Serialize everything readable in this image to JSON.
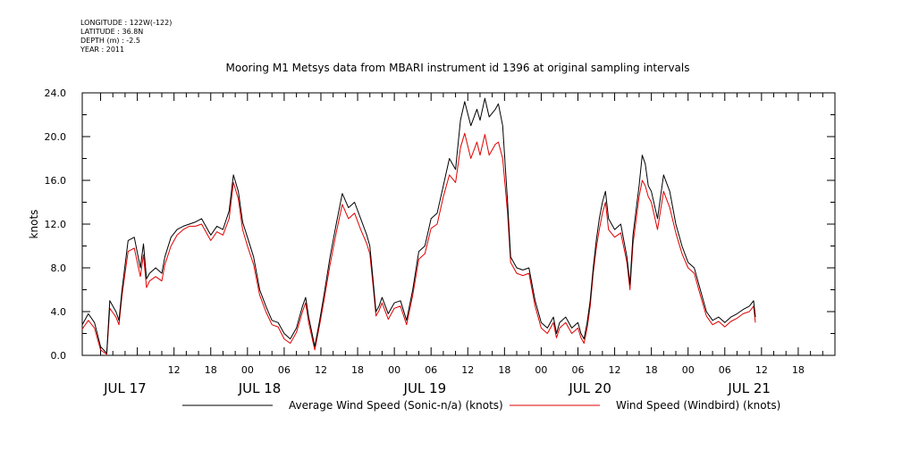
{
  "header": {
    "meta_lines": [
      "LONGITUDE : 122W(-122)",
      "LATITUDE : 36.8N",
      "DEPTH (m) : -2.5",
      "YEAR : 2011"
    ]
  },
  "colors": {
    "series_black": "#000000",
    "series_red": "#e00000",
    "axis": "#000000"
  },
  "chart_data": {
    "type": "line",
    "title": "Mooring M1 Metsys data from MBARI instrument id 1396 at original sampling intervals",
    "ylabel": "knots",
    "xlabel": "",
    "ylim": [
      0,
      24
    ],
    "yticks": [
      "0.0",
      "4.0",
      "8.0",
      "12.0",
      "16.0",
      "20.0",
      "24.0"
    ],
    "xlim_hours": [
      -3,
      120
    ],
    "x_unit": "hours from 2011-07-17 00:00",
    "hour_ticks": [
      {
        "h": 12,
        "label": "12"
      },
      {
        "h": 18,
        "label": "18"
      },
      {
        "h": 24,
        "label": "00"
      },
      {
        "h": 30,
        "label": "06"
      },
      {
        "h": 36,
        "label": "12"
      },
      {
        "h": 42,
        "label": "18"
      },
      {
        "h": 48,
        "label": "00"
      },
      {
        "h": 54,
        "label": "06"
      },
      {
        "h": 60,
        "label": "12"
      },
      {
        "h": 66,
        "label": "18"
      },
      {
        "h": 72,
        "label": "00"
      },
      {
        "h": 78,
        "label": "06"
      },
      {
        "h": 84,
        "label": "12"
      },
      {
        "h": 90,
        "label": "18"
      },
      {
        "h": 96,
        "label": "00"
      },
      {
        "h": 102,
        "label": "06"
      },
      {
        "h": 108,
        "label": "12"
      },
      {
        "h": 114,
        "label": "18"
      }
    ],
    "day_labels": [
      {
        "h": 4,
        "label": "JUL 17"
      },
      {
        "h": 26,
        "label": "JUL 18"
      },
      {
        "h": 53,
        "label": "JUL 19"
      },
      {
        "h": 80,
        "label": "JUL 20"
      },
      {
        "h": 106,
        "label": "JUL 21"
      }
    ],
    "legend_position": "bottom",
    "series": [
      {
        "name": "Average Wind Speed (Sonic-n/a) (knots)",
        "color": "#000000",
        "points": [
          [
            -3,
            2.8
          ],
          [
            -2,
            3.8
          ],
          [
            -1,
            3.0
          ],
          [
            0,
            0.8
          ],
          [
            1,
            0.2
          ],
          [
            1.5,
            5.0
          ],
          [
            2.5,
            4.0
          ],
          [
            3,
            3.2
          ],
          [
            3.5,
            6.0
          ],
          [
            4.5,
            10.5
          ],
          [
            5.5,
            10.8
          ],
          [
            6.5,
            8.0
          ],
          [
            7,
            10.2
          ],
          [
            7.5,
            7.0
          ],
          [
            8,
            7.5
          ],
          [
            9,
            8.0
          ],
          [
            10,
            7.5
          ],
          [
            10.5,
            9.0
          ],
          [
            11.5,
            10.8
          ],
          [
            12.5,
            11.5
          ],
          [
            13.5,
            11.8
          ],
          [
            14.5,
            12.0
          ],
          [
            15.5,
            12.2
          ],
          [
            16.5,
            12.5
          ],
          [
            17.5,
            11.5
          ],
          [
            18,
            11.0
          ],
          [
            19,
            11.8
          ],
          [
            20,
            11.5
          ],
          [
            21,
            13.2
          ],
          [
            21.7,
            16.5
          ],
          [
            22.5,
            15.0
          ],
          [
            23.2,
            12.2
          ],
          [
            24,
            10.8
          ],
          [
            25,
            9.0
          ],
          [
            26,
            6.0
          ],
          [
            27,
            4.5
          ],
          [
            28,
            3.2
          ],
          [
            29,
            3.0
          ],
          [
            30,
            2.0
          ],
          [
            31,
            1.5
          ],
          [
            32,
            2.5
          ],
          [
            33,
            4.5
          ],
          [
            33.5,
            5.3
          ],
          [
            34,
            3.5
          ],
          [
            35,
            0.8
          ],
          [
            35.8,
            3.2
          ],
          [
            36.5,
            5.5
          ],
          [
            37.5,
            9.0
          ],
          [
            38.5,
            12.0
          ],
          [
            39.5,
            14.8
          ],
          [
            40.5,
            13.5
          ],
          [
            41.5,
            14.0
          ],
          [
            42.5,
            12.5
          ],
          [
            43.5,
            11.0
          ],
          [
            44,
            10.0
          ],
          [
            44.5,
            7.0
          ],
          [
            45,
            4.0
          ],
          [
            45.5,
            4.5
          ],
          [
            46,
            5.3
          ],
          [
            47,
            3.8
          ],
          [
            48,
            4.8
          ],
          [
            49,
            5.0
          ],
          [
            50,
            3.2
          ],
          [
            51,
            6.0
          ],
          [
            52,
            9.5
          ],
          [
            53,
            10.0
          ],
          [
            54,
            12.5
          ],
          [
            55,
            13.0
          ],
          [
            56,
            15.5
          ],
          [
            57,
            18.0
          ],
          [
            58,
            17.0
          ],
          [
            58.8,
            21.5
          ],
          [
            59.5,
            23.2
          ],
          [
            60.5,
            21.0
          ],
          [
            61.5,
            22.5
          ],
          [
            62,
            21.5
          ],
          [
            62.8,
            23.5
          ],
          [
            63.5,
            21.8
          ],
          [
            64.5,
            22.5
          ],
          [
            65,
            23.0
          ],
          [
            65.7,
            21.0
          ],
          [
            66.5,
            14.0
          ],
          [
            67,
            9.0
          ],
          [
            68,
            8.0
          ],
          [
            69,
            7.8
          ],
          [
            70,
            8.0
          ],
          [
            71,
            5.0
          ],
          [
            72,
            3.0
          ],
          [
            73,
            2.5
          ],
          [
            74,
            3.5
          ],
          [
            74.5,
            2.0
          ],
          [
            75,
            3.0
          ],
          [
            76,
            3.5
          ],
          [
            77,
            2.5
          ],
          [
            78,
            3.0
          ],
          [
            78.5,
            2.0
          ],
          [
            79,
            1.5
          ],
          [
            79.5,
            3.0
          ],
          [
            80,
            5.0
          ],
          [
            80.5,
            8.0
          ],
          [
            81,
            10.5
          ],
          [
            81.5,
            12.5
          ],
          [
            82,
            14.0
          ],
          [
            82.5,
            15.0
          ],
          [
            83,
            12.5
          ],
          [
            84,
            11.5
          ],
          [
            85,
            12.0
          ],
          [
            86,
            9.0
          ],
          [
            86.5,
            6.5
          ],
          [
            87,
            11.0
          ],
          [
            88,
            15.5
          ],
          [
            88.5,
            18.3
          ],
          [
            89,
            17.5
          ],
          [
            89.5,
            15.5
          ],
          [
            90,
            15.0
          ],
          [
            91,
            12.5
          ],
          [
            92,
            16.5
          ],
          [
            93,
            15.0
          ],
          [
            94,
            12.0
          ],
          [
            95,
            10.0
          ],
          [
            96,
            8.5
          ],
          [
            97,
            8.0
          ],
          [
            98,
            6.0
          ],
          [
            99,
            4.0
          ],
          [
            100,
            3.2
          ],
          [
            101,
            3.5
          ],
          [
            102,
            3.0
          ],
          [
            103,
            3.5
          ],
          [
            104,
            3.8
          ],
          [
            105,
            4.2
          ],
          [
            106,
            4.5
          ],
          [
            106.7,
            5.0
          ],
          [
            107,
            3.5
          ]
        ]
      },
      {
        "name": "Wind Speed (Windbird) (knots)",
        "color": "#e00000",
        "points": [
          [
            -3,
            2.4
          ],
          [
            -2,
            3.2
          ],
          [
            -1,
            2.5
          ],
          [
            0,
            0.5
          ],
          [
            1,
            0.1
          ],
          [
            1.5,
            4.3
          ],
          [
            2.5,
            3.5
          ],
          [
            3,
            2.8
          ],
          [
            3.5,
            5.5
          ],
          [
            4.5,
            9.5
          ],
          [
            5.5,
            9.8
          ],
          [
            6.5,
            7.2
          ],
          [
            7,
            9.2
          ],
          [
            7.5,
            6.2
          ],
          [
            8,
            6.8
          ],
          [
            9,
            7.2
          ],
          [
            10,
            6.8
          ],
          [
            10.5,
            8.3
          ],
          [
            11.5,
            10.0
          ],
          [
            12.5,
            11.0
          ],
          [
            13.5,
            11.5
          ],
          [
            14.5,
            11.8
          ],
          [
            15.5,
            11.8
          ],
          [
            16.5,
            12.0
          ],
          [
            17.5,
            11.0
          ],
          [
            18,
            10.5
          ],
          [
            19,
            11.3
          ],
          [
            20,
            11.0
          ],
          [
            21,
            12.5
          ],
          [
            21.7,
            15.8
          ],
          [
            22.5,
            14.3
          ],
          [
            23.2,
            11.5
          ],
          [
            24,
            10.0
          ],
          [
            25,
            8.3
          ],
          [
            26,
            5.5
          ],
          [
            27,
            4.0
          ],
          [
            28,
            2.8
          ],
          [
            29,
            2.6
          ],
          [
            30,
            1.5
          ],
          [
            31,
            1.1
          ],
          [
            32,
            2.1
          ],
          [
            33,
            4.0
          ],
          [
            33.5,
            4.8
          ],
          [
            34,
            3.0
          ],
          [
            35,
            0.5
          ],
          [
            35.8,
            2.8
          ],
          [
            36.5,
            5.0
          ],
          [
            37.5,
            8.3
          ],
          [
            38.5,
            11.2
          ],
          [
            39.5,
            13.8
          ],
          [
            40.5,
            12.5
          ],
          [
            41.5,
            13.0
          ],
          [
            42.5,
            11.5
          ],
          [
            43.5,
            10.2
          ],
          [
            44,
            9.3
          ],
          [
            44.5,
            6.5
          ],
          [
            45,
            3.6
          ],
          [
            45.5,
            4.1
          ],
          [
            46,
            4.8
          ],
          [
            47,
            3.3
          ],
          [
            48,
            4.3
          ],
          [
            49,
            4.5
          ],
          [
            50,
            2.8
          ],
          [
            51,
            5.5
          ],
          [
            52,
            8.8
          ],
          [
            53,
            9.3
          ],
          [
            54,
            11.6
          ],
          [
            55,
            12.0
          ],
          [
            56,
            14.5
          ],
          [
            57,
            16.5
          ],
          [
            58,
            15.8
          ],
          [
            58.8,
            19.0
          ],
          [
            59.5,
            20.3
          ],
          [
            60.5,
            18.0
          ],
          [
            61.5,
            19.5
          ],
          [
            62,
            18.3
          ],
          [
            62.8,
            20.2
          ],
          [
            63.5,
            18.3
          ],
          [
            64.5,
            19.3
          ],
          [
            65,
            19.5
          ],
          [
            65.7,
            18.0
          ],
          [
            66.5,
            13.0
          ],
          [
            67,
            8.5
          ],
          [
            68,
            7.5
          ],
          [
            69,
            7.3
          ],
          [
            70,
            7.5
          ],
          [
            71,
            4.5
          ],
          [
            72,
            2.5
          ],
          [
            73,
            2.0
          ],
          [
            74,
            3.0
          ],
          [
            74.5,
            1.6
          ],
          [
            75,
            2.5
          ],
          [
            76,
            3.0
          ],
          [
            77,
            2.0
          ],
          [
            78,
            2.5
          ],
          [
            78.5,
            1.6
          ],
          [
            79,
            1.1
          ],
          [
            79.5,
            2.5
          ],
          [
            80,
            4.5
          ],
          [
            80.5,
            7.5
          ],
          [
            81,
            9.8
          ],
          [
            81.5,
            11.5
          ],
          [
            82,
            13.0
          ],
          [
            82.5,
            14.0
          ],
          [
            83,
            11.5
          ],
          [
            84,
            10.8
          ],
          [
            85,
            11.2
          ],
          [
            86,
            8.5
          ],
          [
            86.5,
            6.0
          ],
          [
            87,
            10.2
          ],
          [
            88,
            14.5
          ],
          [
            88.5,
            16.0
          ],
          [
            89,
            15.5
          ],
          [
            89.5,
            14.5
          ],
          [
            90,
            14.0
          ],
          [
            91,
            11.5
          ],
          [
            92,
            15.0
          ],
          [
            93,
            13.5
          ],
          [
            94,
            11.2
          ],
          [
            95,
            9.3
          ],
          [
            96,
            8.0
          ],
          [
            97,
            7.5
          ],
          [
            98,
            5.5
          ],
          [
            99,
            3.6
          ],
          [
            100,
            2.8
          ],
          [
            101,
            3.1
          ],
          [
            102,
            2.6
          ],
          [
            103,
            3.1
          ],
          [
            104,
            3.4
          ],
          [
            105,
            3.8
          ],
          [
            106,
            4.0
          ],
          [
            106.7,
            4.5
          ],
          [
            107,
            3.0
          ]
        ]
      }
    ]
  }
}
